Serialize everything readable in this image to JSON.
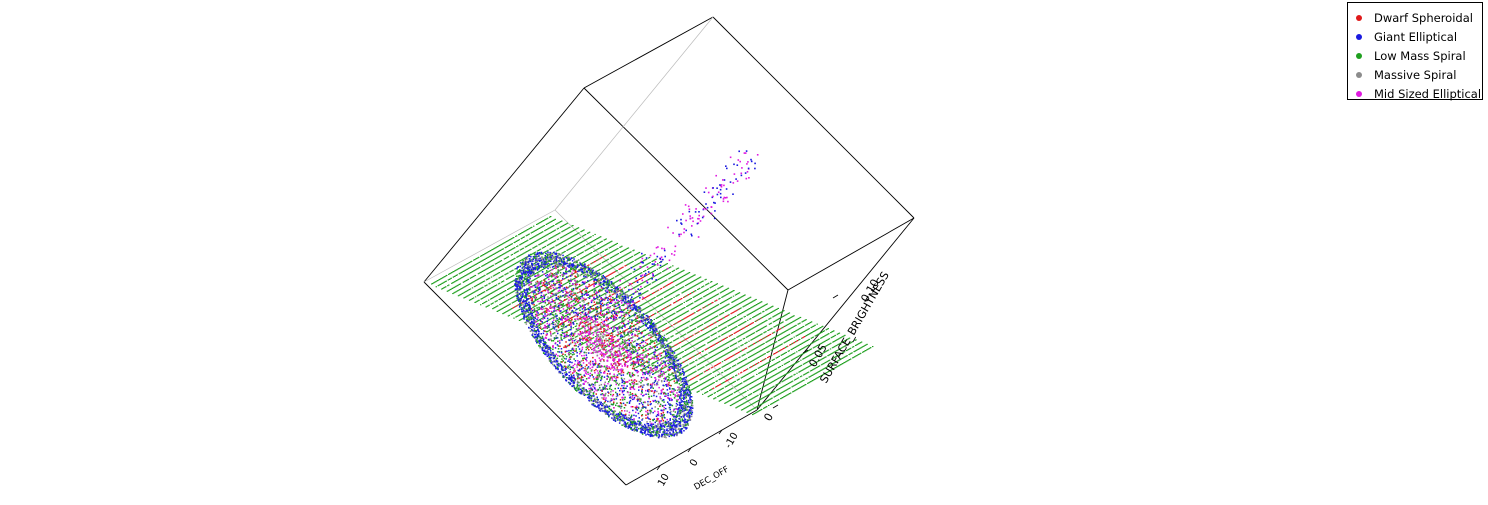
{
  "chart_data": {
    "type": "scatter",
    "dimensions": "3d",
    "title": "",
    "axes": {
      "y": {
        "label": "DEC_OFF",
        "ticks": [
          "10",
          "0",
          "-10"
        ]
      },
      "z": {
        "label": "SURFACE_BRIGHTNESS",
        "ticks": [
          "0",
          "0.05",
          "0.10"
        ]
      }
    },
    "legend": {
      "placement": "top-right",
      "entries": [
        {
          "label": "Dwarf Spheroidal",
          "color": "#e0191a"
        },
        {
          "label": "Giant Elliptical",
          "color": "#1a1ae0"
        },
        {
          "label": "Low Mass Spiral",
          "color": "#1fa01f"
        },
        {
          "label": "Massive Spiral",
          "color": "#8c8c8c"
        },
        {
          "label": "Mid Sized Elliptical",
          "color": "#e01ae0"
        }
      ]
    },
    "grid": false
  }
}
